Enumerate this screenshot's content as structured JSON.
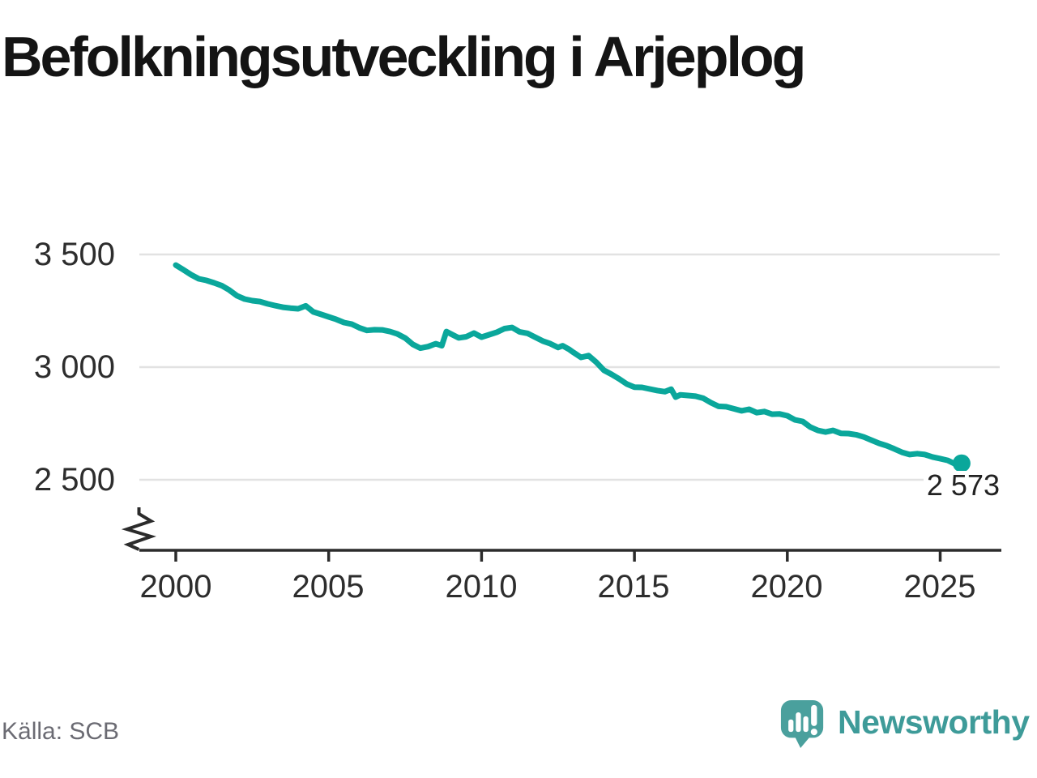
{
  "header": {
    "title": "Befolkningsutveckling i Arjeplog"
  },
  "footer": {
    "source": "Källa: SCB",
    "brand": "Newsworthy"
  },
  "colors": {
    "accent": "#0aa79b",
    "grid": "#e2e2e2",
    "axis": "#2b2b2b",
    "text": "#2d2d2d",
    "title": "#141414",
    "muted": "#6b6b73",
    "brand": "#3e9b99",
    "logo": "#4aa09d"
  },
  "chart_data": {
    "type": "line",
    "title": "Befolkningsutveckling i Arjeplog",
    "grid": "horizontal",
    "legend": "none",
    "axis_break_bottom_left": true,
    "x_range": [
      2000,
      2025.7
    ],
    "y_tick_range": [
      2500,
      3500
    ],
    "x_ticks": [
      {
        "value": 2000,
        "label": "2000"
      },
      {
        "value": 2005,
        "label": "2005"
      },
      {
        "value": 2010,
        "label": "2010"
      },
      {
        "value": 2015,
        "label": "2015"
      },
      {
        "value": 2020,
        "label": "2020"
      },
      {
        "value": 2025,
        "label": "2025"
      }
    ],
    "y_ticks": [
      {
        "value": 3500,
        "label": "3 500"
      },
      {
        "value": 3000,
        "label": "3 000"
      },
      {
        "value": 2500,
        "label": "2 500"
      }
    ],
    "end_label": "2 573",
    "end_value": 2573,
    "series": [
      {
        "points": [
          [
            2000.0,
            3453
          ],
          [
            2000.25,
            3432
          ],
          [
            2000.5,
            3410
          ],
          [
            2000.75,
            3392
          ],
          [
            2001.0,
            3385
          ],
          [
            2001.25,
            3374
          ],
          [
            2001.5,
            3362
          ],
          [
            2001.75,
            3342
          ],
          [
            2002.0,
            3317
          ],
          [
            2002.25,
            3302
          ],
          [
            2002.5,
            3295
          ],
          [
            2002.75,
            3291
          ],
          [
            2003.0,
            3281
          ],
          [
            2003.25,
            3273
          ],
          [
            2003.5,
            3266
          ],
          [
            2003.75,
            3262
          ],
          [
            2004.0,
            3259
          ],
          [
            2004.25,
            3272
          ],
          [
            2004.5,
            3245
          ],
          [
            2004.75,
            3234
          ],
          [
            2005.0,
            3223
          ],
          [
            2005.25,
            3212
          ],
          [
            2005.5,
            3198
          ],
          [
            2005.75,
            3191
          ],
          [
            2006.0,
            3175
          ],
          [
            2006.25,
            3163
          ],
          [
            2006.5,
            3166
          ],
          [
            2006.75,
            3165
          ],
          [
            2007.0,
            3158
          ],
          [
            2007.25,
            3147
          ],
          [
            2007.5,
            3129
          ],
          [
            2007.75,
            3101
          ],
          [
            2008.0,
            3084
          ],
          [
            2008.25,
            3091
          ],
          [
            2008.5,
            3104
          ],
          [
            2008.7,
            3095
          ],
          [
            2008.85,
            3158
          ],
          [
            2009.0,
            3147
          ],
          [
            2009.25,
            3130
          ],
          [
            2009.5,
            3135
          ],
          [
            2009.75,
            3151
          ],
          [
            2010.0,
            3133
          ],
          [
            2010.25,
            3144
          ],
          [
            2010.5,
            3155
          ],
          [
            2010.75,
            3171
          ],
          [
            2011.0,
            3176
          ],
          [
            2011.25,
            3156
          ],
          [
            2011.5,
            3150
          ],
          [
            2011.75,
            3133
          ],
          [
            2012.0,
            3116
          ],
          [
            2012.25,
            3104
          ],
          [
            2012.5,
            3087
          ],
          [
            2012.65,
            3095
          ],
          [
            2012.85,
            3080
          ],
          [
            2013.0,
            3066
          ],
          [
            2013.25,
            3043
          ],
          [
            2013.5,
            3051
          ],
          [
            2013.75,
            3022
          ],
          [
            2014.0,
            2986
          ],
          [
            2014.25,
            2968
          ],
          [
            2014.5,
            2948
          ],
          [
            2014.75,
            2925
          ],
          [
            2015.0,
            2911
          ],
          [
            2015.25,
            2910
          ],
          [
            2015.5,
            2903
          ],
          [
            2015.75,
            2896
          ],
          [
            2016.0,
            2891
          ],
          [
            2016.2,
            2902
          ],
          [
            2016.35,
            2867
          ],
          [
            2016.5,
            2877
          ],
          [
            2016.75,
            2874
          ],
          [
            2017.0,
            2871
          ],
          [
            2017.25,
            2862
          ],
          [
            2017.5,
            2842
          ],
          [
            2017.75,
            2826
          ],
          [
            2018.0,
            2824
          ],
          [
            2018.25,
            2815
          ],
          [
            2018.5,
            2806
          ],
          [
            2018.75,
            2813
          ],
          [
            2019.0,
            2798
          ],
          [
            2019.25,
            2803
          ],
          [
            2019.5,
            2791
          ],
          [
            2019.75,
            2792
          ],
          [
            2020.0,
            2784
          ],
          [
            2020.25,
            2766
          ],
          [
            2020.5,
            2759
          ],
          [
            2020.75,
            2734
          ],
          [
            2021.0,
            2719
          ],
          [
            2021.25,
            2712
          ],
          [
            2021.5,
            2719
          ],
          [
            2021.75,
            2706
          ],
          [
            2022.0,
            2705
          ],
          [
            2022.25,
            2700
          ],
          [
            2022.5,
            2690
          ],
          [
            2022.75,
            2676
          ],
          [
            2023.0,
            2662
          ],
          [
            2023.25,
            2651
          ],
          [
            2023.5,
            2637
          ],
          [
            2023.75,
            2622
          ],
          [
            2024.0,
            2612
          ],
          [
            2024.25,
            2616
          ],
          [
            2024.5,
            2612
          ],
          [
            2024.75,
            2601
          ],
          [
            2025.0,
            2594
          ],
          [
            2025.25,
            2586
          ],
          [
            2025.5,
            2569
          ],
          [
            2025.7,
            2573
          ]
        ]
      }
    ]
  }
}
